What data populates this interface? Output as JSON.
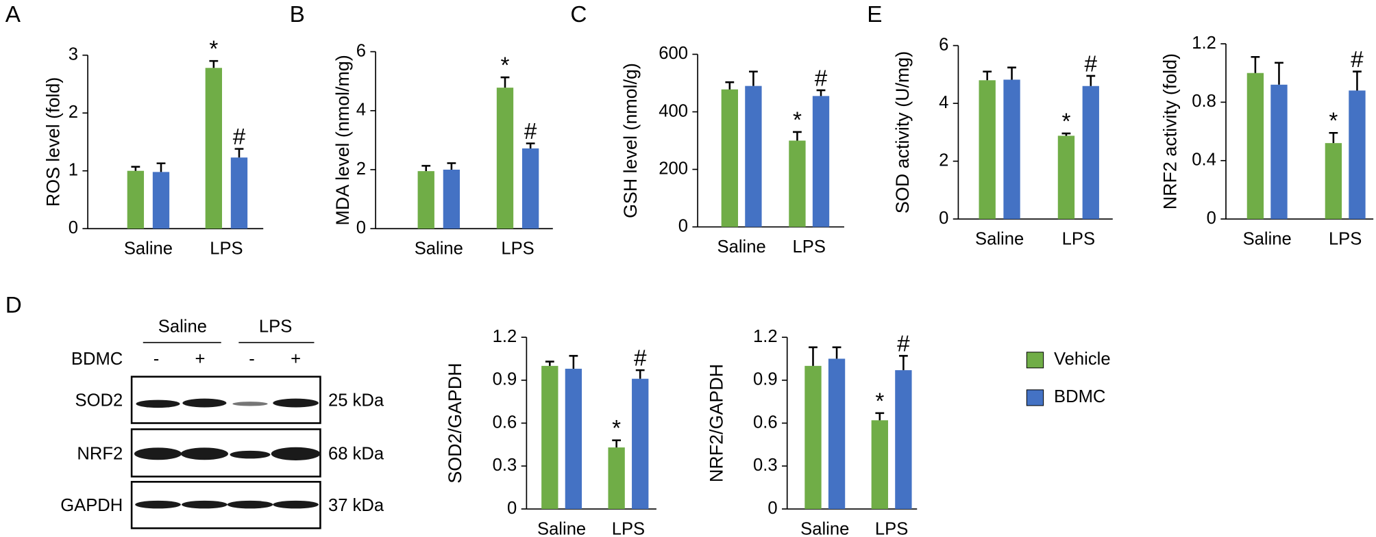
{
  "legend": [
    {
      "name": "Vehicle",
      "color": "#70ad47"
    },
    {
      "name": "BDMC",
      "color": "#4472c4"
    }
  ],
  "blot": {
    "panel": "D",
    "groups": [
      "Saline",
      "LPS"
    ],
    "treatment_label": "BDMC",
    "treatment": [
      "-",
      "+",
      "-",
      "+"
    ],
    "rows": [
      {
        "name": "SOD2",
        "size": "25 kDa"
      },
      {
        "name": "NRF2",
        "size": "68 kDa"
      },
      {
        "name": "GAPDH",
        "size": "37 kDa"
      }
    ]
  },
  "chart_data": [
    {
      "type": "bar",
      "panel": "A",
      "ylabel": "ROS level (fold)",
      "categories": [
        "Saline",
        "LPS"
      ],
      "series": [
        {
          "values": [
            1.0,
            2.78
          ],
          "errors": [
            0.07,
            0.12
          ],
          "markers": [
            null,
            "*"
          ]
        },
        {
          "values": [
            0.98,
            1.23
          ],
          "errors": [
            0.15,
            0.15
          ],
          "markers": [
            null,
            "#"
          ]
        }
      ],
      "ylim": [
        0,
        3
      ],
      "yticks": [
        0,
        1,
        2,
        3
      ]
    },
    {
      "type": "bar",
      "panel": "B",
      "ylabel": "MDA level (nmol/mg)",
      "categories": [
        "Saline",
        "LPS"
      ],
      "series": [
        {
          "values": [
            1.95,
            4.78
          ],
          "errors": [
            0.18,
            0.35
          ],
          "markers": [
            null,
            "*"
          ]
        },
        {
          "values": [
            2.0,
            2.72
          ],
          "errors": [
            0.22,
            0.17
          ],
          "markers": [
            null,
            "#"
          ]
        }
      ],
      "ylim": [
        0,
        6
      ],
      "yticks": [
        0,
        2,
        4,
        6
      ]
    },
    {
      "type": "bar",
      "panel": "C",
      "ylabel": "GSH level (nmol/g)",
      "categories": [
        "Saline",
        "LPS"
      ],
      "series": [
        {
          "values": [
            478,
            300
          ],
          "errors": [
            25,
            30
          ],
          "markers": [
            null,
            "*"
          ]
        },
        {
          "values": [
            490,
            455
          ],
          "errors": [
            50,
            20
          ],
          "markers": [
            null,
            "#"
          ]
        }
      ],
      "ylim": [
        0,
        600
      ],
      "yticks": [
        0,
        200,
        400,
        600
      ]
    },
    {
      "type": "bar",
      "panel": "E",
      "ylabel": "SOD activity (U/mg)",
      "categories": [
        "Saline",
        "LPS"
      ],
      "series": [
        {
          "values": [
            4.8,
            2.88
          ],
          "errors": [
            0.3,
            0.08
          ],
          "markers": [
            null,
            "*"
          ]
        },
        {
          "values": [
            4.82,
            4.6
          ],
          "errors": [
            0.42,
            0.35
          ],
          "markers": [
            null,
            "#"
          ]
        }
      ],
      "ylim": [
        0,
        6
      ],
      "yticks": [
        0,
        2,
        4,
        6
      ]
    },
    {
      "type": "bar",
      "ylabel": "NRF2 activity (fold)",
      "categories": [
        "Saline",
        "LPS"
      ],
      "series": [
        {
          "values": [
            1.0,
            0.52
          ],
          "errors": [
            0.11,
            0.07
          ],
          "markers": [
            null,
            "*"
          ]
        },
        {
          "values": [
            0.92,
            0.88
          ],
          "errors": [
            0.15,
            0.13
          ],
          "markers": [
            null,
            "#"
          ]
        }
      ],
      "ylim": [
        0,
        1.2
      ],
      "yticks": [
        0,
        0.4,
        0.8,
        1.2
      ]
    },
    {
      "type": "bar",
      "ylabel": "SOD2/GAPDH",
      "categories": [
        "Saline",
        "LPS"
      ],
      "series": [
        {
          "values": [
            1.0,
            0.43
          ],
          "errors": [
            0.03,
            0.05
          ],
          "markers": [
            null,
            "*"
          ]
        },
        {
          "values": [
            0.98,
            0.91
          ],
          "errors": [
            0.09,
            0.06
          ],
          "markers": [
            null,
            "#"
          ]
        }
      ],
      "ylim": [
        0,
        1.2
      ],
      "yticks": [
        0,
        0.3,
        0.6,
        0.9,
        1.2
      ]
    },
    {
      "type": "bar",
      "ylabel": "NRF2/GAPDH",
      "categories": [
        "Saline",
        "LPS"
      ],
      "series": [
        {
          "values": [
            1.0,
            0.62
          ],
          "errors": [
            0.13,
            0.05
          ],
          "markers": [
            null,
            "*"
          ]
        },
        {
          "values": [
            1.05,
            0.97
          ],
          "errors": [
            0.08,
            0.1
          ],
          "markers": [
            null,
            "#"
          ]
        }
      ],
      "ylim": [
        0,
        1.2
      ],
      "yticks": [
        0,
        0.3,
        0.6,
        0.9,
        1.2
      ]
    }
  ]
}
